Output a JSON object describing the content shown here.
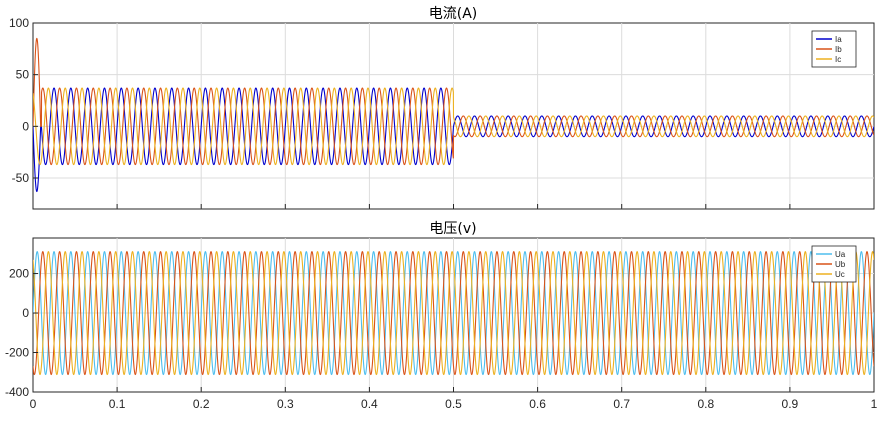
{
  "chart_data": [
    {
      "type": "line",
      "title": "电流(A)",
      "xlabel": "",
      "ylabel": "",
      "xlim": [
        0,
        1
      ],
      "ylim": [
        -80,
        100
      ],
      "yticks": [
        -50,
        0,
        50,
        100
      ],
      "xticks": [
        0,
        0.1,
        0.2,
        0.3,
        0.4,
        0.5,
        0.6,
        0.7,
        0.8,
        0.9,
        1
      ],
      "grid": true,
      "legend_position": "top-right",
      "frequency_hz": 50,
      "series": [
        {
          "name": "Ia",
          "color": "#0000cc",
          "phase_deg": 0,
          "segments": [
            {
              "t_start": 0.01,
              "t_end": 0.5,
              "amplitude": 37
            },
            {
              "t_start": 0.5,
              "t_end": 1.0,
              "amplitude": 10
            }
          ],
          "initial_transient": {
            "t_start": 0,
            "t_end": 0.01,
            "peak_value": -63
          }
        },
        {
          "name": "Ib",
          "color": "#d95319",
          "phase_deg": -120,
          "segments": [
            {
              "t_start": 0.01,
              "t_end": 0.5,
              "amplitude": 37
            },
            {
              "t_start": 0.5,
              "t_end": 1.0,
              "amplitude": 10
            }
          ],
          "initial_transient": {
            "t_start": 0,
            "t_end": 0.01,
            "peak_value": 85
          }
        },
        {
          "name": "Ic",
          "color": "#edb120",
          "phase_deg": 120,
          "segments": [
            {
              "t_start": 0.01,
              "t_end": 0.5,
              "amplitude": 37
            },
            {
              "t_start": 0.5,
              "t_end": 1.0,
              "amplitude": 10
            }
          ]
        }
      ]
    },
    {
      "type": "line",
      "title": "电压(v)",
      "xlabel": "",
      "ylabel": "",
      "xlim": [
        0,
        1
      ],
      "ylim": [
        -400,
        380
      ],
      "yticks": [
        -400,
        -200,
        0,
        200
      ],
      "xticks": [
        0,
        0.1,
        0.2,
        0.3,
        0.4,
        0.5,
        0.6,
        0.7,
        0.8,
        0.9,
        1
      ],
      "xtick_labels": [
        "0",
        "0.1",
        "0.2",
        "0.3",
        "0.4",
        "0.5",
        "0.6",
        "0.7",
        "0.8",
        "0.9",
        "1"
      ],
      "grid": true,
      "legend_position": "top-right",
      "frequency_hz": 50,
      "series": [
        {
          "name": "Ua",
          "color": "#4dbeee",
          "phase_deg": 0,
          "amplitude": 311
        },
        {
          "name": "Ub",
          "color": "#d95319",
          "phase_deg": -120,
          "amplitude": 311
        },
        {
          "name": "Uc",
          "color": "#edb120",
          "phase_deg": 120,
          "amplitude": 311
        }
      ]
    }
  ]
}
